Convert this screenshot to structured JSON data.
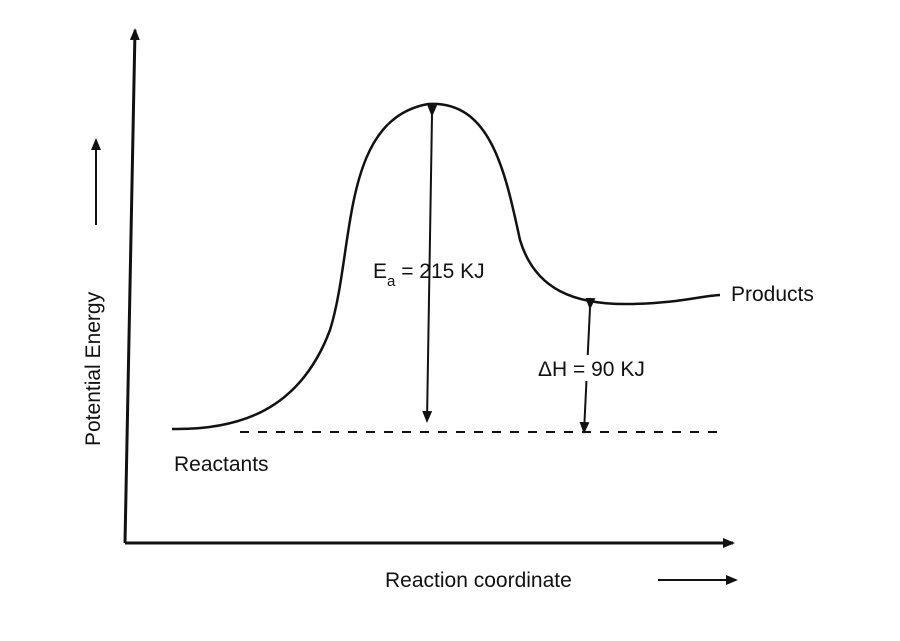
{
  "diagram": {
    "y_axis_label": "Potential Energy",
    "x_axis_label": "Reaction coordinate",
    "reactants_label": "Reactants",
    "products_label": "Products",
    "ea": {
      "symbol": "E",
      "subscript": "a",
      "value_text": " = 215 KJ"
    },
    "dh": {
      "text": "ΔH = 90 KJ"
    }
  },
  "colors": {
    "ink": "#111111",
    "background": "#ffffff"
  }
}
